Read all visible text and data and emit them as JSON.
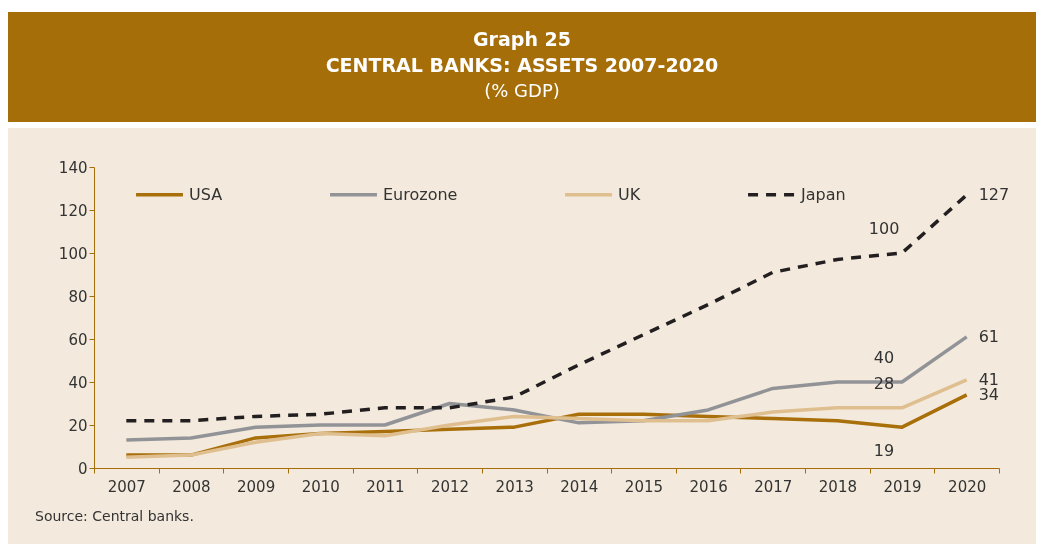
{
  "chart_data": {
    "type": "line",
    "title": "Graph 25",
    "subtitle": "CENTRAL BANKS: ASSETS 2007-2020",
    "ylabel": "(% GDP)",
    "categories": [
      "2007",
      "2008",
      "2009",
      "2010",
      "2011",
      "2012",
      "2013",
      "2014",
      "2015",
      "2016",
      "2017",
      "2018",
      "2019",
      "2020"
    ],
    "series": [
      {
        "name": "USA",
        "color": "#a86f0a",
        "line_style": "solid",
        "values": [
          6,
          6,
          14,
          16,
          17,
          18,
          19,
          25,
          25,
          24,
          23,
          22,
          19,
          34
        ]
      },
      {
        "name": "Eurozone",
        "color": "#929397",
        "line_style": "solid",
        "values": [
          13,
          14,
          19,
          20,
          20,
          30,
          27,
          21,
          22,
          27,
          37,
          40,
          40,
          61
        ]
      },
      {
        "name": "UK",
        "color": "#dfbf8f",
        "line_style": "solid",
        "values": [
          5,
          6,
          12,
          16,
          15,
          20,
          24,
          23,
          22,
          22,
          26,
          28,
          28,
          41
        ]
      },
      {
        "name": "Japan",
        "color": "#231f20",
        "line_style": "dashed",
        "values": [
          22,
          22,
          24,
          25,
          28,
          28,
          33,
          48,
          62,
          76,
          91,
          97,
          100,
          127
        ]
      }
    ],
    "ylim": [
      0,
      140
    ],
    "yticks": [
      0,
      20,
      40,
      60,
      80,
      100,
      120,
      140
    ],
    "grid": false,
    "legend": "top",
    "annotations": [
      {
        "text": "100",
        "x": "2019",
        "y": 100
      },
      {
        "text": "127",
        "x": "2020",
        "y": 127
      },
      {
        "text": "40",
        "x": "2019",
        "y": 40
      },
      {
        "text": "61",
        "x": "2020",
        "y": 61
      },
      {
        "text": "28",
        "x": "2019",
        "y": 28
      },
      {
        "text": "41",
        "x": "2020",
        "y": 41
      },
      {
        "text": "19",
        "x": "2019",
        "y": 19
      },
      {
        "text": "34",
        "x": "2020",
        "y": 34
      },
      "Source: Central banks."
    ]
  }
}
